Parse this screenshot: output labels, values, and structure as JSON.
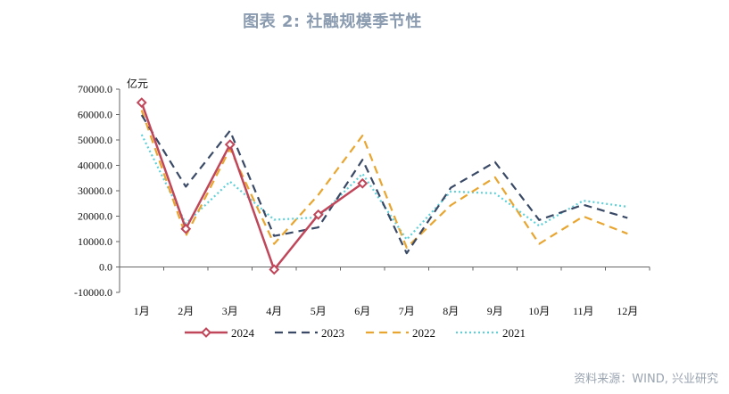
{
  "header": {
    "title": "图表 2:  社融规模季节性"
  },
  "footer": {
    "source": "资料来源：WIND, 兴业研究"
  },
  "chart_data": {
    "type": "line",
    "title": "图表 2:  社融规模季节性",
    "unit_label": "亿元",
    "categories": [
      "1月",
      "2月",
      "3月",
      "4月",
      "5月",
      "6月",
      "7月",
      "8月",
      "9月",
      "10月",
      "11月",
      "12月"
    ],
    "y_ticks": [
      "70000.0",
      "60000.0",
      "50000.0",
      "40000.0",
      "30000.0",
      "20000.0",
      "10000.0",
      "0.0",
      "-10000.0"
    ],
    "ylim": [
      -10000,
      70000
    ],
    "grid": false,
    "legend_position": "bottom",
    "series": [
      {
        "name": "2024",
        "color": "#c0465a",
        "style": "solid-diamond",
        "values": [
          64700,
          15000,
          48200,
          -1000,
          20600,
          32900,
          null,
          null,
          null,
          null,
          null,
          null
        ]
      },
      {
        "name": "2023",
        "color": "#3a4a66",
        "style": "dashed",
        "values": [
          59800,
          31600,
          53600,
          12200,
          15600,
          42200,
          5400,
          31200,
          41300,
          18500,
          24500,
          19300
        ]
      },
      {
        "name": "2022",
        "color": "#e8a530",
        "style": "dashed",
        "values": [
          61700,
          12200,
          46500,
          9100,
          28400,
          51700,
          7600,
          24300,
          35300,
          9100,
          19900,
          13100
        ]
      },
      {
        "name": "2021",
        "color": "#5fd0d8",
        "style": "dotted",
        "values": [
          52100,
          17100,
          33600,
          18600,
          19500,
          36700,
          10800,
          29700,
          29000,
          16200,
          26100,
          23700
        ]
      }
    ]
  }
}
